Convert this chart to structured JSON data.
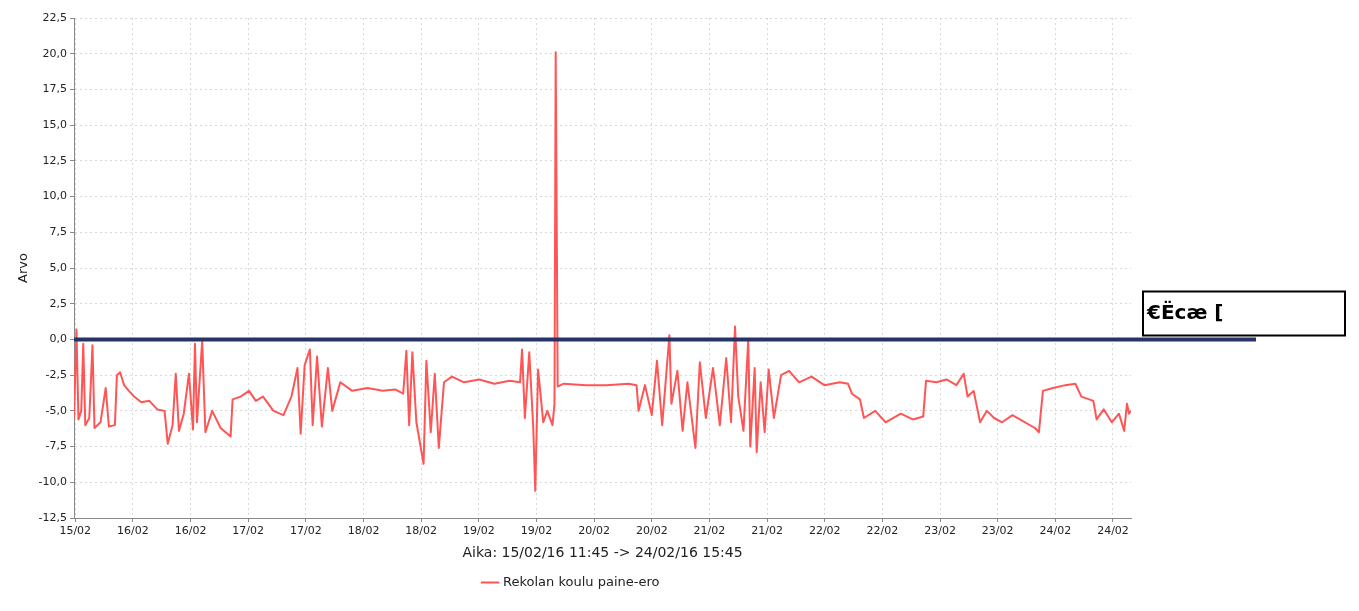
{
  "chart_data": {
    "type": "line",
    "xlabel": "Aika: 15/02/16 11:45 -> 24/02/16 15:45",
    "ylabel": "Arvo",
    "xlim": [
      "--02-15T11:45",
      "--02-24T15:45"
    ],
    "xticks": [
      {
        "value": "--02-15T12:00",
        "label": "15/02"
      },
      {
        "value": "--02-16T00:00",
        "label": "16/02"
      },
      {
        "value": "--02-16T12:00",
        "label": "16/02"
      },
      {
        "value": "--02-17T00:00",
        "label": "17/02"
      },
      {
        "value": "--02-17T12:00",
        "label": "17/02"
      },
      {
        "value": "--02-18T00:00",
        "label": "18/02"
      },
      {
        "value": "--02-18T12:00",
        "label": "18/02"
      },
      {
        "value": "--02-19T00:00",
        "label": "19/02"
      },
      {
        "value": "--02-19T12:00",
        "label": "19/02"
      },
      {
        "value": "--02-20T00:00",
        "label": "20/02"
      },
      {
        "value": "--02-20T12:00",
        "label": "20/02"
      },
      {
        "value": "--02-21T00:00",
        "label": "21/02"
      },
      {
        "value": "--02-21T12:00",
        "label": "21/02"
      },
      {
        "value": "--02-22T00:00",
        "label": "22/02"
      },
      {
        "value": "--02-22T12:00",
        "label": "22/02"
      },
      {
        "value": "--02-23T00:00",
        "label": "23/02"
      },
      {
        "value": "--02-23T12:00",
        "label": "23/02"
      },
      {
        "value": "--02-24T00:00",
        "label": "24/02"
      },
      {
        "value": "--02-24T12:00",
        "label": "24/02"
      }
    ],
    "ylim": [
      -12.5,
      22.5
    ],
    "yticks": [
      {
        "value": -12.5,
        "label": "-12,5"
      },
      {
        "value": -10,
        "label": "-10,0"
      },
      {
        "value": -7.5,
        "label": "-7,5"
      },
      {
        "value": -5,
        "label": "-5,0"
      },
      {
        "value": -2.5,
        "label": "-2,5"
      },
      {
        "value": 0,
        "label": "0,0"
      },
      {
        "value": 2.5,
        "label": "2,5"
      },
      {
        "value": 5,
        "label": "5,0"
      },
      {
        "value": 7.5,
        "label": "7,5"
      },
      {
        "value": 10,
        "label": "10,0"
      },
      {
        "value": 12.5,
        "label": "12,5"
      },
      {
        "value": 15,
        "label": "15,0"
      },
      {
        "value": 17.5,
        "label": "17,5"
      },
      {
        "value": 20,
        "label": "20,0"
      },
      {
        "value": 22.5,
        "label": "22,5"
      }
    ],
    "grid": true,
    "legend": "bottom",
    "marker": "none",
    "ref_lines": [
      {
        "axis": "y",
        "value": 0,
        "label": "€Ëcæ [",
        "color": "#263366"
      }
    ],
    "series": [
      {
        "name": "Rekolan koulu paine-ero",
        "color": "#ff5555",
        "x": [
          "--02-15T11:45",
          "--02-15T12:15",
          "--02-15T12:40",
          "--02-15T13:15",
          "--02-15T13:40",
          "--02-15T14:05",
          "--02-15T14:55",
          "--02-15T15:35",
          "--02-15T16:00",
          "--02-15T17:15",
          "--02-15T18:20",
          "--02-15T19:00",
          "--02-15T20:15",
          "--02-15T20:40",
          "--02-15T21:20",
          "--02-15T22:10",
          "--02-15T23:10",
          "--02-16T00:15",
          "--02-16T01:45",
          "--02-16T03:25",
          "--02-16T05:05",
          "--02-16T06:35",
          "--02-16T07:15",
          "--02-16T08:15",
          "--02-16T08:55",
          "--02-16T09:35",
          "--02-16T10:35",
          "--02-16T11:40",
          "--02-16T12:30",
          "--02-16T12:55",
          "--02-16T13:20",
          "--02-16T14:25",
          "--02-16T15:05",
          "--02-16T16:30",
          "--02-16T18:15",
          "--02-16T20:20",
          "--02-16T20:45",
          "--02-16T22:25",
          "--02-17T00:10",
          "--02-17T01:35",
          "--02-17T03:05",
          "--02-17T05:15",
          "--02-17T07:20",
          "--02-17T09:00",
          "--02-17T10:15",
          "--02-17T10:55",
          "--02-17T11:45",
          "--02-17T12:50",
          "--02-17T13:25",
          "--02-17T14:20",
          "--02-17T15:20",
          "--02-17T16:35",
          "--02-17T17:30",
          "--02-17T19:10",
          "--02-17T21:40",
          "--02-18T00:50",
          "--02-18T04:00",
          "--02-18T06:35",
          "--02-18T08:15",
          "--02-18T08:55",
          "--02-18T09:30",
          "--02-18T10:10",
          "--02-18T11:00",
          "--02-18T12:30",
          "--02-18T13:05",
          "--02-18T14:00",
          "--02-18T14:50",
          "--02-18T15:40",
          "--02-18T16:45",
          "--02-18T18:25",
          "--02-18T20:55",
          "--02-19T00:05",
          "--02-19T03:15",
          "--02-19T06:25",
          "--02-19T08:35",
          "--02-19T09:00",
          "--02-19T09:35",
          "--02-19T10:30",
          "--02-19T11:20",
          "--02-19T11:45",
          "--02-19T12:20",
          "--02-19T13:25",
          "--02-19T14:15",
          "--02-19T15:20",
          "--02-19T15:45",
          "--02-19T16:00",
          "--02-19T16:25",
          "--02-19T17:40",
          "--02-19T22:20",
          "--02-20T02:30",
          "--02-20T07:10",
          "--02-20T08:50",
          "--02-20T09:15",
          "--02-20T10:35",
          "--02-20T12:00",
          "--02-20T13:05",
          "--02-20T14:10",
          "--02-20T15:40",
          "--02-20T16:05",
          "--02-20T17:20",
          "--02-20T18:25",
          "--02-20T19:25",
          "--02-20T21:05",
          "--02-20T22:00",
          "--02-20T23:15",
          "--02-21T00:45",
          "--02-21T02:10",
          "--02-21T03:30",
          "--02-21T04:30",
          "--02-21T05:20",
          "--02-21T06:00",
          "--02-21T07:05",
          "--02-21T08:05",
          "--02-21T08:30",
          "--02-21T09:25",
          "--02-21T09:50",
          "--02-21T10:40",
          "--02-21T11:30",
          "--02-21T12:20",
          "--02-21T13:25",
          "--02-21T14:55",
          "--02-21T16:35",
          "--02-21T18:40",
          "--02-21T21:15",
          "--02-21T23:55",
          "--02-22T03:10",
          "--02-22T04:50",
          "--02-22T05:40",
          "--02-22T07:20",
          "--02-22T08:10",
          "--02-22T10:30",
          "--02-22T12:40",
          "--02-22T15:50",
          "--02-22T18:20",
          "--02-22T20:30",
          "--02-22T21:05",
          "--02-22T23:15",
          "--02-23T01:20",
          "--02-23T03:25",
          "--02-23T04:55",
          "--02-23T05:45",
          "--02-23T07:00",
          "--02-23T08:20",
          "--02-23T09:45",
          "--02-23T11:15",
          "--02-23T12:55",
          "--02-23T15:05",
          "--02-23T17:10",
          "--02-23T19:45",
          "--02-23T20:35",
          "--02-23T21:25",
          "--02-23T23:30",
          "--02-24T02:05",
          "--02-24T04:10",
          "--02-24T05:25",
          "--02-24T07:55",
          "--02-24T08:35",
          "--02-24T10:05",
          "--02-24T11:45",
          "--02-24T13:15",
          "--02-24T14:20",
          "--02-24T14:55",
          "--02-24T15:20",
          "--02-24T15:45"
        ],
        "values": [
          -5.5,
          0.7,
          -5.6,
          -5.0,
          -0.3,
          -6.0,
          -5.5,
          -0.4,
          -6.2,
          -5.8,
          -3.4,
          -6.1,
          -6.0,
          -2.5,
          -2.3,
          -3.2,
          -3.6,
          -4.0,
          -4.4,
          -4.3,
          -4.9,
          -5.0,
          -7.3,
          -6.0,
          -2.4,
          -6.4,
          -5.2,
          -2.4,
          -6.3,
          -0.3,
          -5.8,
          -0.1,
          -6.5,
          -5.0,
          -6.2,
          -6.8,
          -4.2,
          -4.0,
          -3.6,
          -4.3,
          -4.0,
          -5.0,
          -5.3,
          -4.0,
          -2.0,
          -6.6,
          -1.8,
          -0.7,
          -6.0,
          -1.2,
          -6.1,
          -2.0,
          -5.0,
          -3.0,
          -3.6,
          -3.4,
          -3.6,
          -3.5,
          -3.8,
          -0.8,
          -6.0,
          -0.9,
          -5.8,
          -8.7,
          -1.5,
          -6.5,
          -2.4,
          -7.6,
          -3.0,
          -2.6,
          -3.0,
          -2.8,
          -3.1,
          -2.9,
          -3.0,
          -0.7,
          -5.5,
          -0.9,
          -6.2,
          -10.6,
          -2.1,
          -5.8,
          -5.0,
          -6.0,
          -4.5,
          20.1,
          -3.3,
          -3.1,
          -3.2,
          -3.2,
          -3.1,
          -3.2,
          -5.0,
          -3.2,
          -5.3,
          -1.5,
          -6.0,
          0.3,
          -4.5,
          -2.2,
          -6.4,
          -3.0,
          -7.6,
          -1.6,
          -5.5,
          -2.0,
          -6.0,
          -1.3,
          -5.8,
          0.9,
          -4.0,
          -6.4,
          0.0,
          -7.5,
          -2.0,
          -7.9,
          -3.0,
          -6.5,
          -2.1,
          -5.5,
          -2.5,
          -2.2,
          -3.0,
          -2.6,
          -3.2,
          -3.0,
          -3.1,
          -3.8,
          -4.2,
          -5.5,
          -5.0,
          -5.8,
          -5.2,
          -5.6,
          -5.4,
          -2.9,
          -3.0,
          -2.8,
          -3.2,
          -2.4,
          -4.0,
          -3.6,
          -5.8,
          -5.0,
          -5.5,
          -5.8,
          -5.3,
          -5.7,
          -6.2,
          -6.5,
          -3.6,
          -3.4,
          -3.2,
          -3.1,
          -4.0,
          -4.3,
          -5.6,
          -4.9,
          -5.8,
          -5.2,
          -6.4,
          -4.5,
          -5.2,
          -5.0
        ]
      }
    ]
  }
}
